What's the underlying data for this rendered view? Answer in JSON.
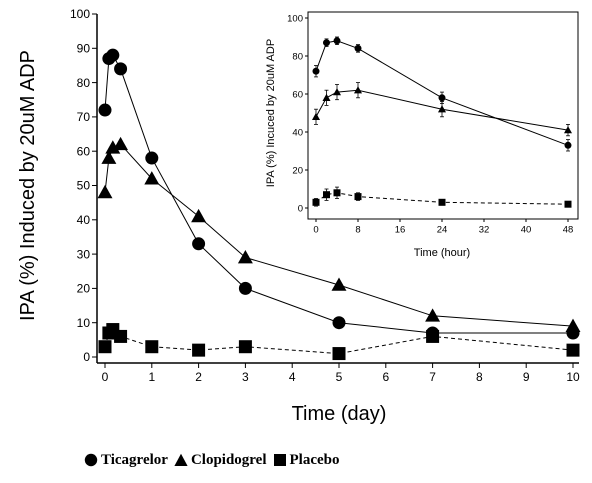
{
  "chart_data": [
    {
      "type": "line",
      "title": "",
      "xlabel": "Time (day)",
      "ylabel": "IPA (%) Induced by 20uM ADP",
      "xlim": [
        0,
        10
      ],
      "ylim": [
        0,
        100
      ],
      "xticks": [
        "0",
        "1",
        "2",
        "3",
        "4",
        "5",
        "6",
        "7",
        "8",
        "9",
        "10"
      ],
      "yticks": [
        "0",
        "10",
        "20",
        "30",
        "40",
        "50",
        "60",
        "70",
        "80",
        "90",
        "100"
      ],
      "grid": false,
      "series": [
        {
          "name": "Ticagrelor",
          "marker": "circle",
          "line": "solid",
          "x": [
            0,
            0.083,
            0.167,
            0.333,
            1,
            2,
            3,
            5,
            7,
            10
          ],
          "y": [
            72,
            87,
            88,
            84,
            58,
            33,
            20,
            10,
            7,
            7
          ]
        },
        {
          "name": "Clopidogrel",
          "marker": "triangle",
          "line": "solid",
          "x": [
            0,
            0.083,
            0.167,
            0.333,
            1,
            2,
            3,
            5,
            7,
            10
          ],
          "y": [
            48,
            58,
            61,
            62,
            52,
            41,
            29,
            21,
            12,
            9
          ]
        },
        {
          "name": "Placebo",
          "marker": "square",
          "line": "dashed",
          "x": [
            0,
            0.083,
            0.167,
            0.333,
            1,
            2,
            3,
            5,
            7,
            10
          ],
          "y": [
            3,
            7,
            8,
            6,
            3,
            2,
            3,
            1,
            6,
            2
          ]
        }
      ],
      "legend": {
        "position": "bottom",
        "entries": [
          "Ticagrelor",
          "Clopidogrel",
          "Placebo"
        ]
      }
    },
    {
      "type": "line",
      "title": "",
      "xlabel": "Time (hour)",
      "ylabel": "IPA (%) Incuced by 20uM ADP",
      "xlim": [
        0,
        48
      ],
      "ylim": [
        0,
        100
      ],
      "xticks": [
        "0",
        "8",
        "16",
        "24",
        "32",
        "40",
        "48"
      ],
      "yticks": [
        "0",
        "20",
        "40",
        "60",
        "80",
        "100"
      ],
      "grid": false,
      "series": [
        {
          "name": "Ticagrelor",
          "marker": "circle",
          "line": "solid",
          "x": [
            0,
            2,
            4,
            8,
            24,
            48
          ],
          "y": [
            72,
            87,
            88,
            84,
            58,
            33
          ],
          "err": [
            3,
            2,
            2,
            2,
            3,
            3
          ]
        },
        {
          "name": "Clopidogrel",
          "marker": "triangle",
          "line": "solid",
          "x": [
            0,
            2,
            4,
            8,
            24,
            48
          ],
          "y": [
            48,
            58,
            61,
            62,
            52,
            41
          ],
          "err": [
            4,
            4,
            4,
            4,
            4,
            3
          ]
        },
        {
          "name": "Placebo",
          "marker": "square",
          "line": "dashed",
          "x": [
            0,
            2,
            4,
            8,
            24,
            48
          ],
          "y": [
            3,
            7,
            8,
            6,
            3,
            2
          ],
          "err": [
            2,
            3,
            3,
            2,
            1,
            1
          ]
        }
      ]
    }
  ]
}
